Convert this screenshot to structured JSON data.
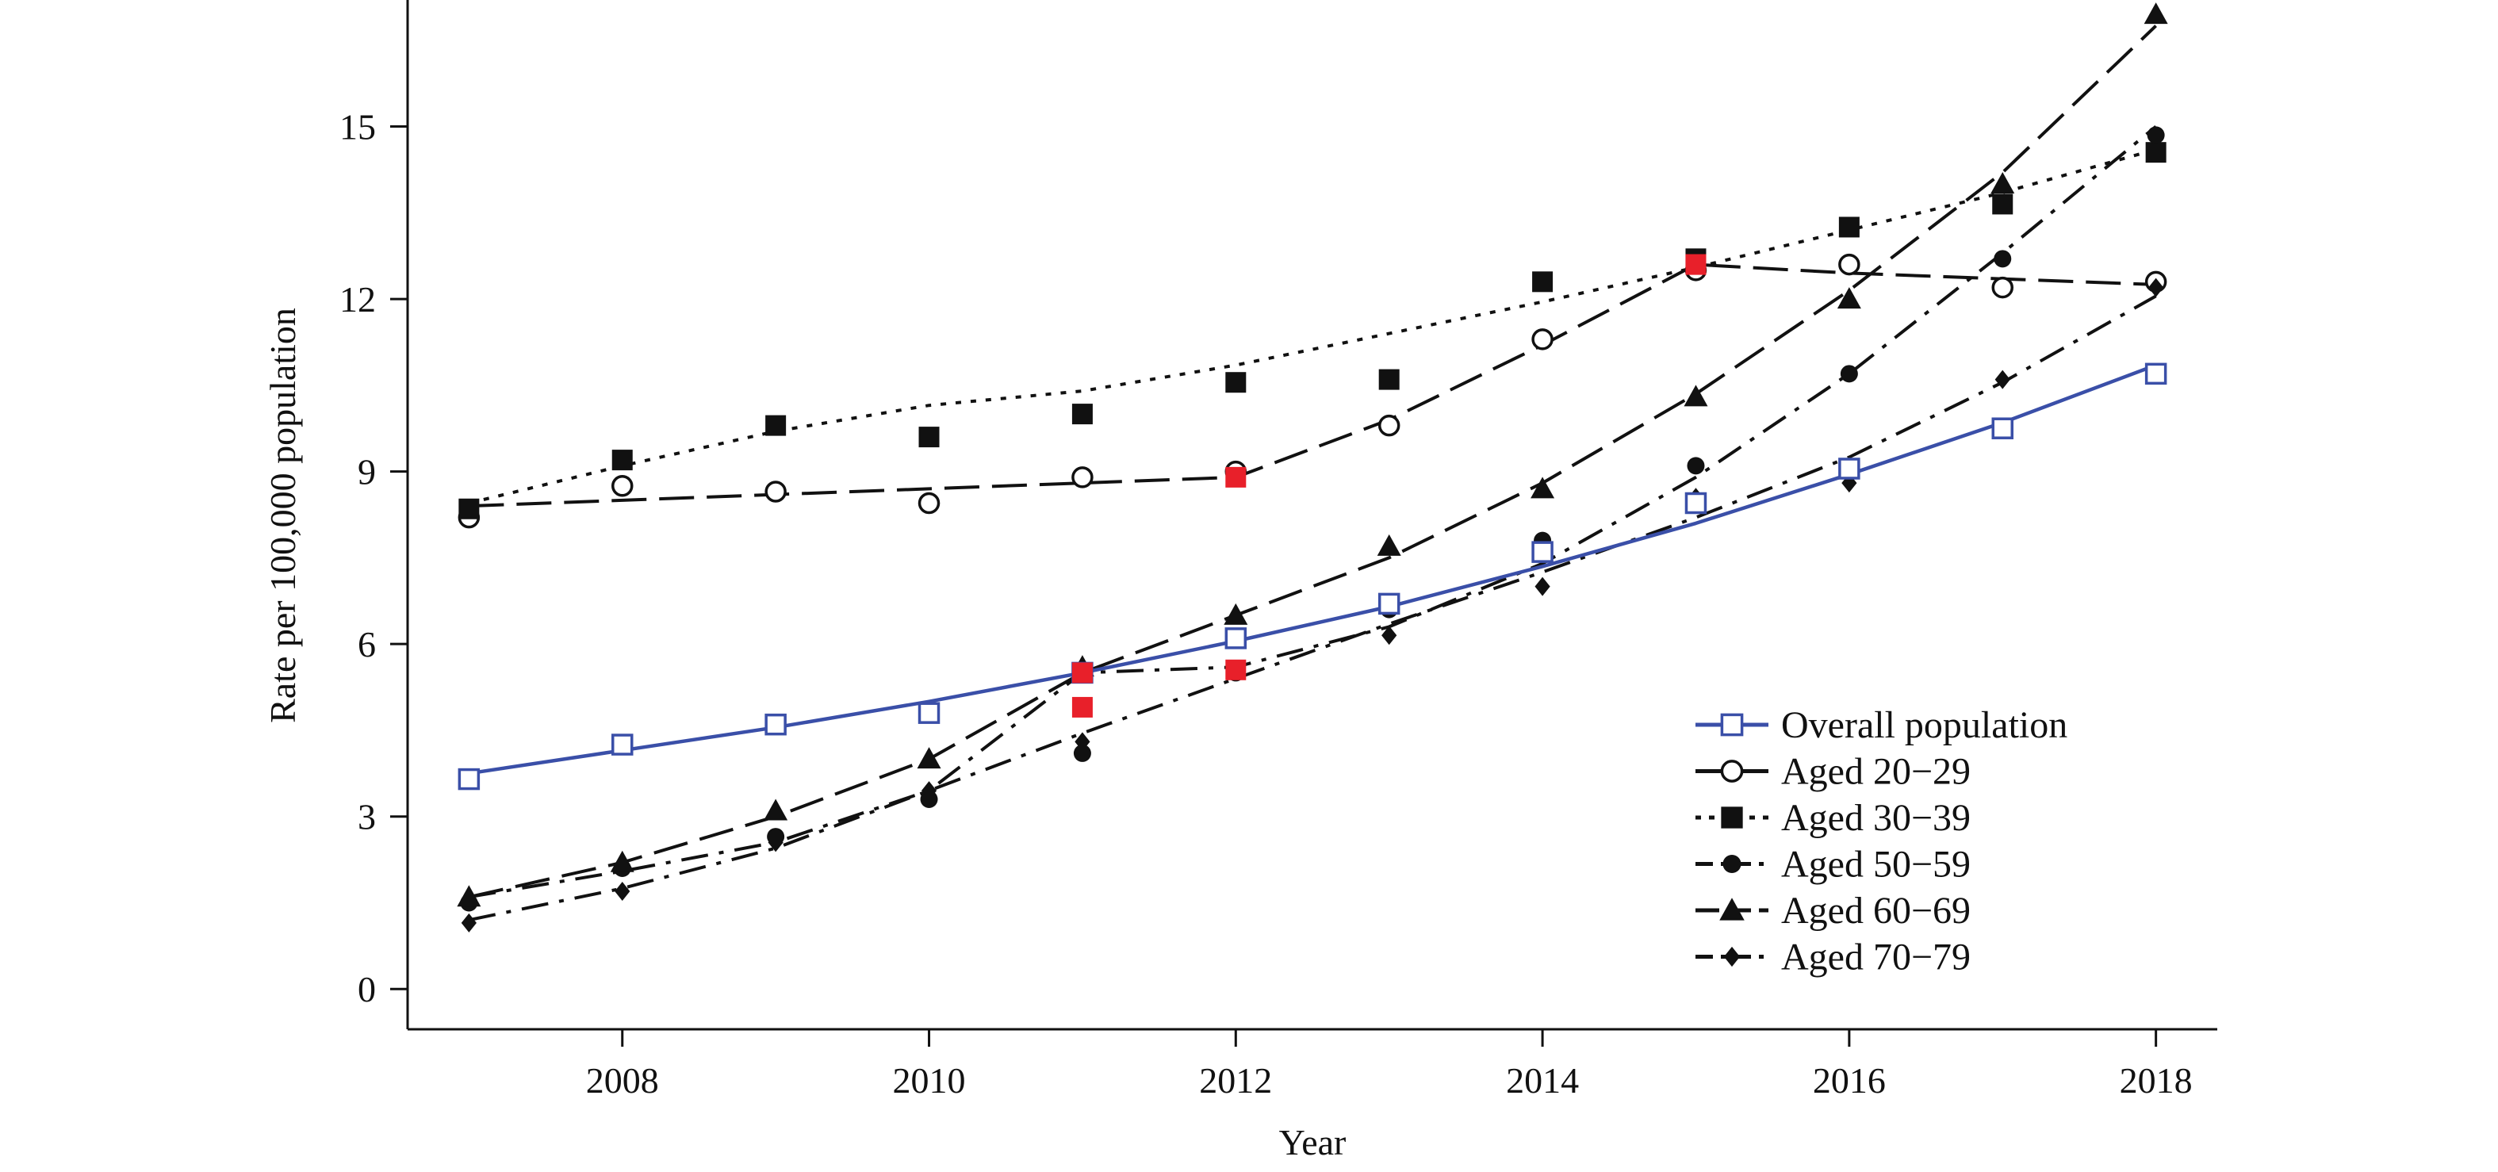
{
  "chart_data": {
    "type": "line",
    "title": "",
    "xlabel": "Year",
    "ylabel": "Rate per 100,000 population",
    "xlim": [
      2006.6,
      2018.4
    ],
    "ylim": [
      -0.7,
      17.2
    ],
    "xticks": [
      2008,
      2010,
      2012,
      2014,
      2016,
      2018
    ],
    "yticks": [
      0,
      3,
      6,
      9,
      12,
      15
    ],
    "grid": false,
    "legend_position": "lower-right",
    "x": [
      2007,
      2008,
      2009,
      2010,
      2011,
      2012,
      2013,
      2014,
      2015,
      2016,
      2017,
      2018
    ],
    "series": [
      {
        "name": "Overall population",
        "marker": "open-square",
        "dash": "solid",
        "color": "#3a4fa8",
        "values": [
          3.65,
          4.25,
          4.6,
          4.8,
          5.5,
          6.1,
          6.7,
          7.6,
          8.45,
          9.05,
          9.75,
          10.7
        ],
        "fit": [
          3.75,
          4.15,
          4.55,
          5.0,
          5.5,
          6.05,
          6.65,
          7.35,
          8.1,
          8.95,
          9.85,
          10.85
        ]
      },
      {
        "name": "Aged 20−29",
        "marker": "open-circle",
        "dash": "long",
        "color": "#111111",
        "values": [
          8.2,
          8.75,
          8.65,
          8.45,
          8.9,
          9.0,
          9.8,
          11.3,
          12.5,
          12.6,
          12.2,
          12.3
        ],
        "fit": [
          8.4,
          8.5,
          8.6,
          8.7,
          8.8,
          8.9,
          9.9,
          11.2,
          12.6,
          12.45,
          12.35,
          12.25
        ]
      },
      {
        "name": "Aged 30−39",
        "marker": "filled-square",
        "dash": "dotted",
        "color": "#111111",
        "values": [
          8.35,
          9.2,
          9.8,
          9.6,
          10.0,
          10.55,
          10.6,
          12.3,
          12.7,
          13.25,
          13.65,
          14.55
        ],
        "fit": [
          8.45,
          9.1,
          9.7,
          10.15,
          10.4,
          10.85,
          11.4,
          11.95,
          12.55,
          13.2,
          13.85,
          14.6
        ]
      },
      {
        "name": "Aged 50−59",
        "marker": "filled-circle",
        "dash": "dash-dot",
        "color": "#111111",
        "values": [
          1.5,
          2.1,
          2.65,
          3.3,
          4.1,
          5.5,
          6.6,
          7.8,
          9.1,
          10.7,
          12.7,
          14.85
        ],
        "fit": [
          1.6,
          2.05,
          2.55,
          3.45,
          5.5,
          5.6,
          6.3,
          7.4,
          8.9,
          10.7,
          12.8,
          15.0
        ]
      },
      {
        "name": "Aged 60−69",
        "marker": "filled-triangle",
        "dash": "long",
        "color": "#111111",
        "values": [
          1.6,
          2.2,
          3.1,
          4.0,
          5.6,
          6.5,
          7.7,
          8.7,
          10.3,
          12.0,
          14.0,
          16.95
        ],
        "fit": [
          1.6,
          2.2,
          3.0,
          4.0,
          5.5,
          6.5,
          7.5,
          8.8,
          10.35,
          12.15,
          14.2,
          16.75
        ]
      },
      {
        "name": "Aged 70−79",
        "marker": "filled-diamond",
        "dash": "dash-dot",
        "color": "#111111",
        "values": [
          1.15,
          1.7,
          2.55,
          3.45,
          4.3,
          5.55,
          6.15,
          7.0,
          8.55,
          8.8,
          10.6,
          12.2
        ],
        "fit": [
          1.2,
          1.75,
          2.45,
          3.45,
          4.45,
          5.4,
          6.35,
          7.25,
          8.2,
          9.25,
          10.55,
          12.05
        ]
      }
    ],
    "highlighted_points": [
      {
        "series": "Aged 20−29",
        "x": 2012,
        "y": 8.9,
        "color": "#e8202a"
      },
      {
        "series": "Aged 20−29",
        "x": 2015,
        "y": 12.6,
        "color": "#e8202a"
      },
      {
        "series": "Aged 30−39",
        "x": 2015,
        "y": 12.6,
        "color": "#e8202a"
      },
      {
        "series": "Aged 50−59",
        "x": 2011,
        "y": 5.5,
        "color": "#e8202a"
      },
      {
        "series": "Aged 50−59",
        "x": 2012,
        "y": 5.55,
        "color": "#e8202a"
      },
      {
        "series": "Aged 70−79",
        "x": 2011,
        "y": 4.9,
        "color": "#e8202a"
      }
    ]
  }
}
